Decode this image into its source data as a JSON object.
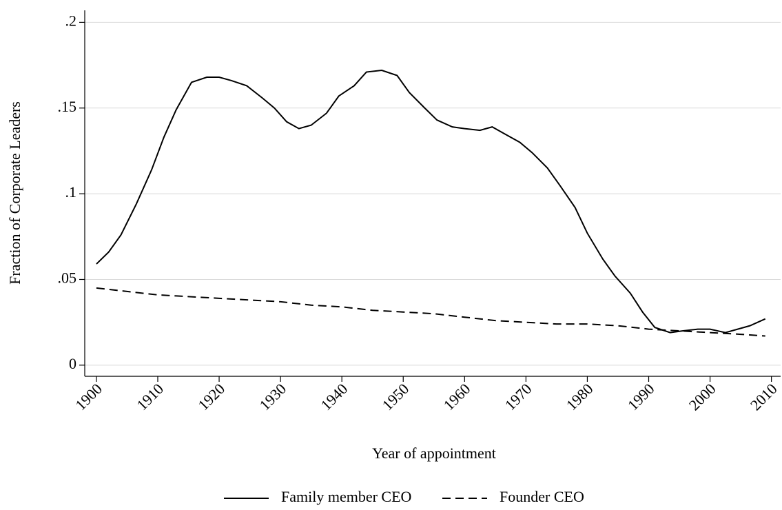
{
  "chart_data": {
    "type": "line",
    "xlabel": "Year of appointment",
    "ylabel": "Fraction of Corporate Leaders",
    "xlim": [
      1898.1,
      2011.5
    ],
    "ylim": [
      -0.0065,
      0.207
    ],
    "xticks": [
      1900,
      1910,
      1920,
      1930,
      1940,
      1950,
      1960,
      1970,
      1980,
      1990,
      2000,
      2010
    ],
    "yticks": [
      0,
      {
        "value": 0.05,
        "label": ".05"
      },
      {
        "value": 0.1,
        "label": ".1"
      },
      {
        "value": 0.15,
        "label": ".15"
      },
      {
        "value": 0.2,
        "label": ".2"
      }
    ],
    "grid": true,
    "legend": "bottom",
    "series": [
      {
        "name": "Family member CEO",
        "color": "#000000",
        "style": "solid",
        "x": [
          1900,
          1902,
          1904,
          1906.5,
          1909,
          1911,
          1913,
          1915.5,
          1918,
          1920,
          1922,
          1924.5,
          1927,
          1929,
          1931,
          1933,
          1935,
          1937.5,
          1939.5,
          1942,
          1944,
          1946.5,
          1949,
          1951,
          1953.5,
          1955.5,
          1958,
          1960,
          1962.5,
          1964.5,
          1966.5,
          1969,
          1971,
          1973.5,
          1975.5,
          1978,
          1980,
          1982.5,
          1984.5,
          1987,
          1989,
          1991,
          1993.5,
          1995.5,
          1998,
          2000,
          2002.5,
          2004.5,
          2006.5,
          2009
        ],
        "values": [
          0.059,
          0.066,
          0.076,
          0.094,
          0.114,
          0.133,
          0.149,
          0.165,
          0.168,
          0.168,
          0.166,
          0.163,
          0.156,
          0.15,
          0.142,
          0.138,
          0.14,
          0.147,
          0.157,
          0.163,
          0.171,
          0.172,
          0.169,
          0.159,
          0.15,
          0.143,
          0.139,
          0.138,
          0.137,
          0.139,
          0.135,
          0.13,
          0.124,
          0.115,
          0.105,
          0.092,
          0.077,
          0.062,
          0.052,
          0.042,
          0.031,
          0.022,
          0.019,
          0.02,
          0.021,
          0.021,
          0.019,
          0.021,
          0.023,
          0.027
        ]
      },
      {
        "name": "Founder CEO",
        "color": "#000000",
        "style": "dashed",
        "x": [
          1900,
          1905,
          1910,
          1915,
          1920,
          1925,
          1930,
          1935,
          1940,
          1945,
          1950,
          1955,
          1960,
          1965,
          1970,
          1975,
          1980,
          1985,
          1990,
          1995,
          2000,
          2005,
          2009
        ],
        "values": [
          0.045,
          0.043,
          0.041,
          0.04,
          0.039,
          0.038,
          0.037,
          0.035,
          0.034,
          0.032,
          0.031,
          0.03,
          0.028,
          0.026,
          0.025,
          0.024,
          0.024,
          0.023,
          0.021,
          0.02,
          0.019,
          0.018,
          0.017
        ]
      }
    ]
  }
}
